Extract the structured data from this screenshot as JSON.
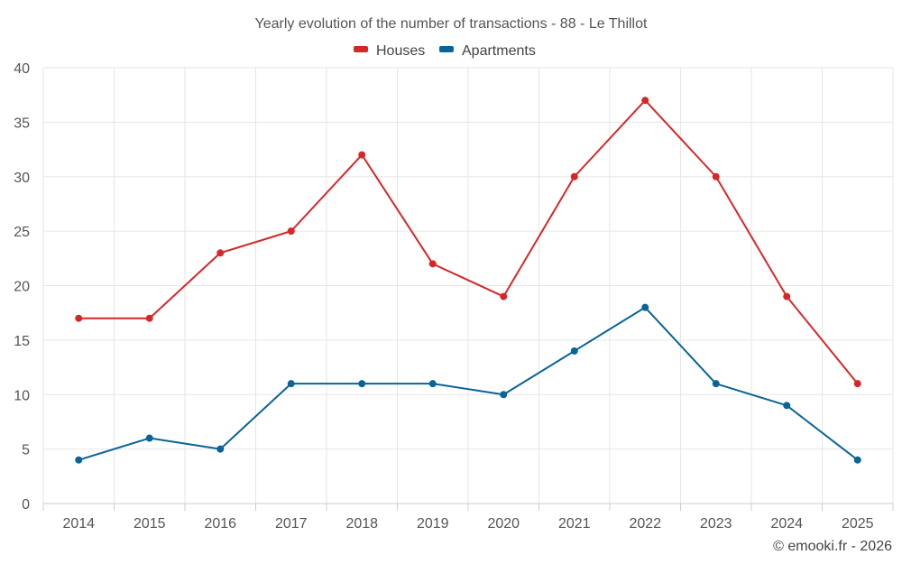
{
  "chart_data": {
    "type": "line",
    "title": "Yearly evolution of the number of transactions - 88 - Le Thillot",
    "categories": [
      "2014",
      "2015",
      "2016",
      "2017",
      "2018",
      "2019",
      "2020",
      "2021",
      "2022",
      "2023",
      "2024",
      "2025"
    ],
    "series": [
      {
        "name": "Houses",
        "color": "#d62728",
        "values": [
          17,
          17,
          23,
          25,
          32,
          22,
          19,
          30,
          37,
          30,
          19,
          11
        ]
      },
      {
        "name": "Apartments",
        "color": "#0a6496",
        "values": [
          4,
          6,
          5,
          11,
          11,
          11,
          10,
          14,
          18,
          11,
          9,
          4
        ]
      }
    ],
    "yticks": [
      0,
      5,
      10,
      15,
      20,
      25,
      30,
      35,
      40
    ],
    "ylim": [
      0,
      40
    ],
    "xlabel": "",
    "ylabel": "",
    "grid": true,
    "legend": "top-center",
    "credit": "© emooki.fr - 2026"
  }
}
